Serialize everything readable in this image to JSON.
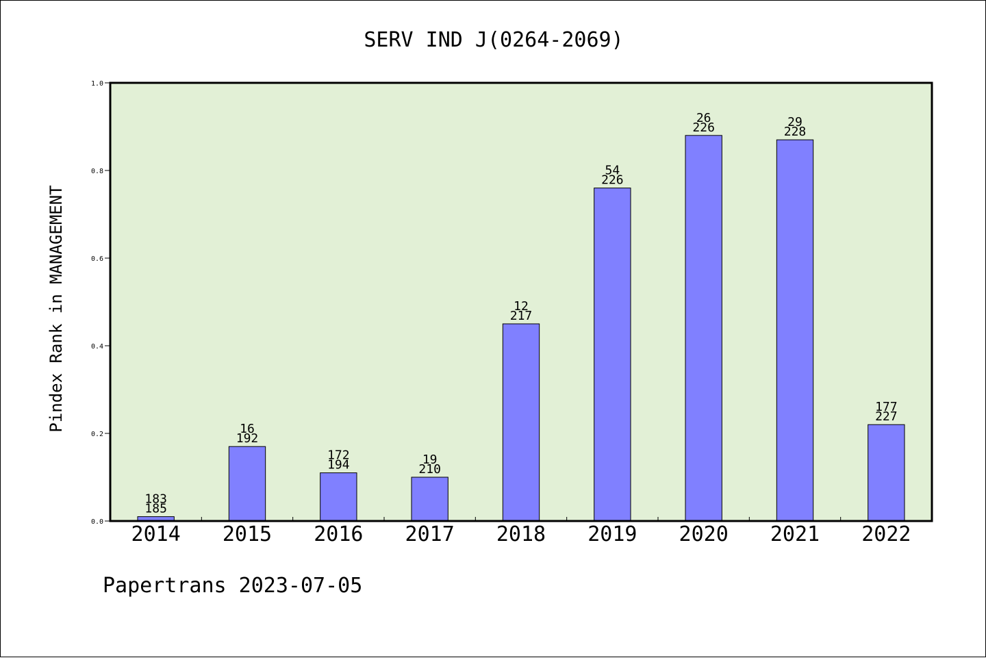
{
  "chart_data": {
    "type": "bar",
    "title": "SERV IND J(0264-2069)",
    "xlabel": "",
    "ylabel": "Pindex Rank in MANAGEMENT",
    "ylim": [
      0,
      1.0
    ],
    "yticks": [
      "0.0",
      "0.2",
      "0.4",
      "0.6",
      "0.8",
      "1.0"
    ],
    "ytick_values": [
      0,
      0.2,
      0.4,
      0.6,
      0.8,
      1.0
    ],
    "categories": [
      "2014",
      "2015",
      "2016",
      "2017",
      "2018",
      "2019",
      "2020",
      "2021",
      "2022"
    ],
    "values": [
      0.01,
      0.17,
      0.11,
      0.1,
      0.45,
      0.76,
      0.88,
      0.87,
      0.22
    ],
    "bar_labels_top": [
      "183",
      "16",
      "172",
      "19",
      "12",
      "54",
      "26",
      "29",
      "177"
    ],
    "bar_labels_bottom": [
      "185",
      "192",
      "194",
      "210",
      "217",
      "226",
      "226",
      "228",
      "227"
    ],
    "bar_color": "#8080ff",
    "plot_background": "#e2f0d6",
    "grid": false,
    "legend": "none"
  },
  "footer": "Papertrans 2023-07-05"
}
